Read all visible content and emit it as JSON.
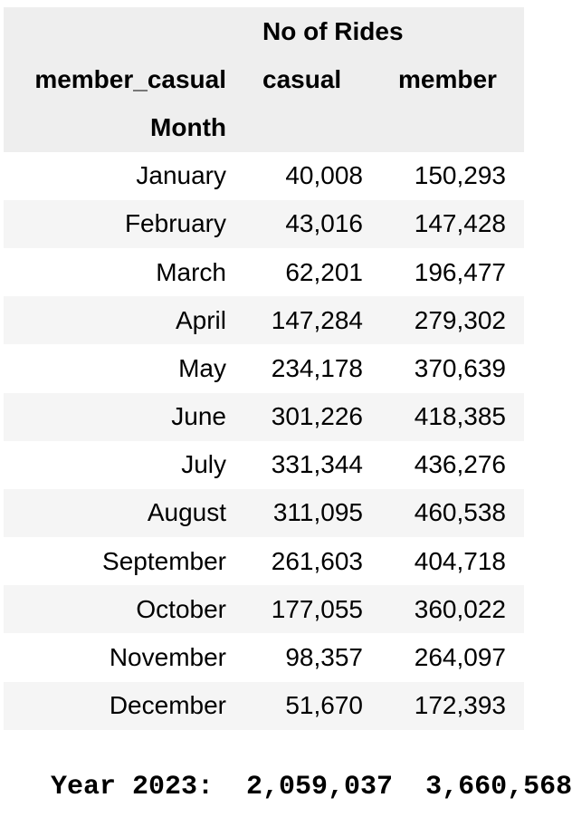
{
  "table": {
    "top_header": "No of Rides",
    "column_index_name": "member_casual",
    "columns": [
      "casual",
      "member"
    ],
    "row_index_name": "Month",
    "rows": [
      {
        "month": "January",
        "casual": "40,008",
        "member": "150,293"
      },
      {
        "month": "February",
        "casual": "43,016",
        "member": "147,428"
      },
      {
        "month": "March",
        "casual": "62,201",
        "member": "196,477"
      },
      {
        "month": "April",
        "casual": "147,284",
        "member": "279,302"
      },
      {
        "month": "May",
        "casual": "234,178",
        "member": "370,639"
      },
      {
        "month": "June",
        "casual": "301,226",
        "member": "418,385"
      },
      {
        "month": "July",
        "casual": "331,344",
        "member": "436,276"
      },
      {
        "month": "August",
        "casual": "311,095",
        "member": "460,538"
      },
      {
        "month": "September",
        "casual": "261,603",
        "member": "404,718"
      },
      {
        "month": "October",
        "casual": "177,055",
        "member": "360,022"
      },
      {
        "month": "November",
        "casual": "98,357",
        "member": "264,097"
      },
      {
        "month": "December",
        "casual": "51,670",
        "member": "172,393"
      }
    ]
  },
  "totals": {
    "text": "Year 2023:  2,059,037  3,660,568"
  },
  "colors": {
    "header_bg": "#eeeeee",
    "stripe_bg": "#f5f5f5",
    "text": "#000000"
  }
}
